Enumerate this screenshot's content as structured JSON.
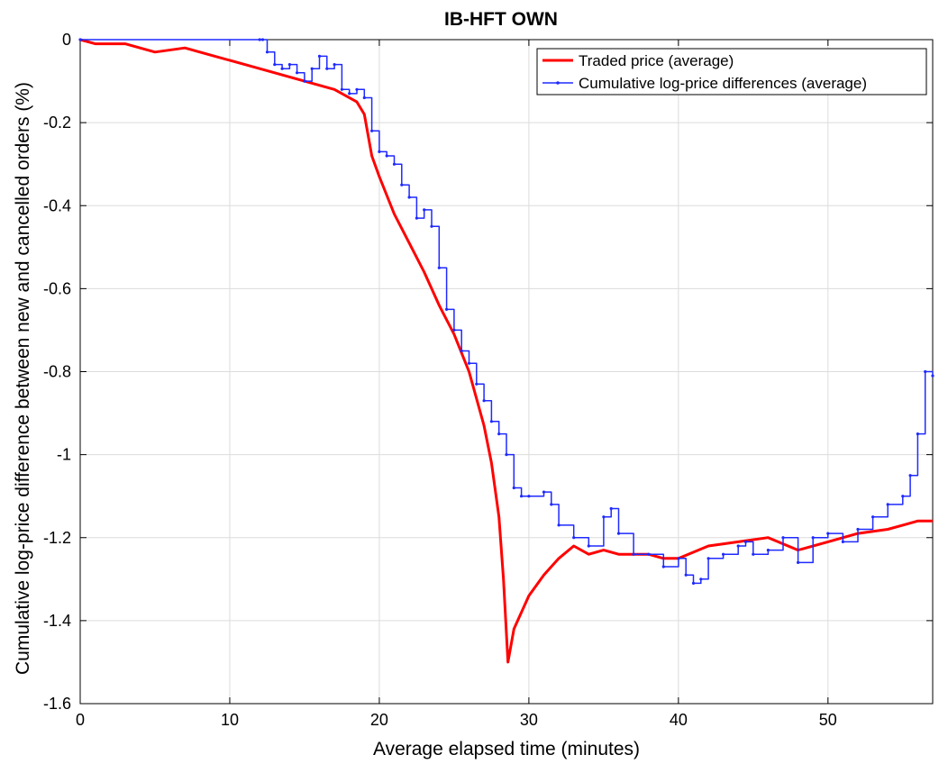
{
  "chart_data": {
    "type": "line",
    "title": "IB-HFT OWN",
    "xlabel": "Average elapsed time (minutes)",
    "ylabel": "Cumulative log-price difference between new and cancelled orders (%)",
    "xlim": [
      0,
      57
    ],
    "ylim": [
      -1.6,
      0
    ],
    "xticks": [
      0,
      10,
      20,
      30,
      40,
      50
    ],
    "yticks": [
      0,
      -0.2,
      -0.4,
      -0.6,
      -0.8,
      -1,
      -1.2,
      -1.4,
      -1.6
    ],
    "xtick_labels": [
      "0",
      "10",
      "20",
      "30",
      "40",
      "50"
    ],
    "ytick_labels": [
      "0",
      "-0.2",
      "-0.4",
      "-0.6",
      "-0.8",
      "-1",
      "-1.2",
      "-1.4",
      "-1.6"
    ],
    "grid": true,
    "legend_position": "top-right",
    "series": [
      {
        "name": "Traded price (average)",
        "color": "#ff0000",
        "style": "solid-thick",
        "points": [
          [
            0,
            0
          ],
          [
            1,
            -0.01
          ],
          [
            3,
            -0.01
          ],
          [
            5,
            -0.03
          ],
          [
            7,
            -0.02
          ],
          [
            9,
            -0.04
          ],
          [
            11,
            -0.06
          ],
          [
            13,
            -0.08
          ],
          [
            15,
            -0.1
          ],
          [
            17,
            -0.12
          ],
          [
            18.5,
            -0.15
          ],
          [
            19,
            -0.18
          ],
          [
            19.5,
            -0.28
          ],
          [
            20,
            -0.33
          ],
          [
            21,
            -0.42
          ],
          [
            22,
            -0.49
          ],
          [
            23,
            -0.56
          ],
          [
            24,
            -0.64
          ],
          [
            25,
            -0.71
          ],
          [
            26,
            -0.8
          ],
          [
            27,
            -0.93
          ],
          [
            27.5,
            -1.02
          ],
          [
            28,
            -1.15
          ],
          [
            28.3,
            -1.3
          ],
          [
            28.6,
            -1.5
          ],
          [
            29,
            -1.42
          ],
          [
            30,
            -1.34
          ],
          [
            31,
            -1.29
          ],
          [
            32,
            -1.25
          ],
          [
            33,
            -1.22
          ],
          [
            34,
            -1.24
          ],
          [
            35,
            -1.23
          ],
          [
            36,
            -1.24
          ],
          [
            38,
            -1.24
          ],
          [
            39,
            -1.25
          ],
          [
            40,
            -1.25
          ],
          [
            42,
            -1.22
          ],
          [
            44,
            -1.21
          ],
          [
            46,
            -1.2
          ],
          [
            48,
            -1.23
          ],
          [
            50,
            -1.21
          ],
          [
            52,
            -1.19
          ],
          [
            54,
            -1.18
          ],
          [
            55,
            -1.17
          ],
          [
            56,
            -1.16
          ],
          [
            57,
            -1.16
          ]
        ]
      },
      {
        "name": "Cumulative log-price differences (average)",
        "color": "#1f2aff",
        "style": "step-with-markers",
        "points": [
          [
            0,
            0
          ],
          [
            12,
            0
          ],
          [
            12.2,
            0
          ],
          [
            12.5,
            -0.03
          ],
          [
            13,
            -0.06
          ],
          [
            13.5,
            -0.07
          ],
          [
            14,
            -0.06
          ],
          [
            14.5,
            -0.08
          ],
          [
            15,
            -0.1
          ],
          [
            15.5,
            -0.07
          ],
          [
            16,
            -0.04
          ],
          [
            16.5,
            -0.07
          ],
          [
            17,
            -0.06
          ],
          [
            17.5,
            -0.12
          ],
          [
            18,
            -0.13
          ],
          [
            18.5,
            -0.12
          ],
          [
            19,
            -0.14
          ],
          [
            19.5,
            -0.22
          ],
          [
            20,
            -0.27
          ],
          [
            20.5,
            -0.28
          ],
          [
            21,
            -0.3
          ],
          [
            21.5,
            -0.35
          ],
          [
            22,
            -0.38
          ],
          [
            22.5,
            -0.43
          ],
          [
            23,
            -0.41
          ],
          [
            23.5,
            -0.45
          ],
          [
            24,
            -0.55
          ],
          [
            24.5,
            -0.65
          ],
          [
            25,
            -0.7
          ],
          [
            25.5,
            -0.75
          ],
          [
            26,
            -0.78
          ],
          [
            26.5,
            -0.83
          ],
          [
            27,
            -0.87
          ],
          [
            27.5,
            -0.92
          ],
          [
            28,
            -0.95
          ],
          [
            28.5,
            -1.0
          ],
          [
            29,
            -1.08
          ],
          [
            29.5,
            -1.1
          ],
          [
            30,
            -1.1
          ],
          [
            31,
            -1.09
          ],
          [
            31.5,
            -1.12
          ],
          [
            32,
            -1.17
          ],
          [
            33,
            -1.2
          ],
          [
            34,
            -1.22
          ],
          [
            35,
            -1.15
          ],
          [
            35.5,
            -1.13
          ],
          [
            36,
            -1.19
          ],
          [
            37,
            -1.24
          ],
          [
            38,
            -1.24
          ],
          [
            39,
            -1.27
          ],
          [
            40,
            -1.25
          ],
          [
            40.5,
            -1.29
          ],
          [
            41,
            -1.31
          ],
          [
            41.5,
            -1.3
          ],
          [
            42,
            -1.25
          ],
          [
            43,
            -1.24
          ],
          [
            44,
            -1.22
          ],
          [
            44.5,
            -1.21
          ],
          [
            45,
            -1.24
          ],
          [
            46,
            -1.23
          ],
          [
            47,
            -1.2
          ],
          [
            48,
            -1.26
          ],
          [
            49,
            -1.2
          ],
          [
            50,
            -1.19
          ],
          [
            51,
            -1.21
          ],
          [
            52,
            -1.18
          ],
          [
            53,
            -1.15
          ],
          [
            54,
            -1.12
          ],
          [
            55,
            -1.1
          ],
          [
            55.5,
            -1.05
          ],
          [
            56,
            -0.95
          ],
          [
            56.5,
            -0.8
          ],
          [
            57,
            -0.81
          ]
        ]
      }
    ]
  }
}
